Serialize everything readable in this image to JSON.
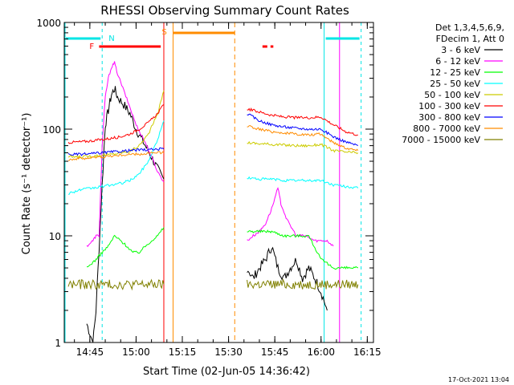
{
  "chart_data": {
    "type": "line",
    "title": "RHESSI Observing Summary Count Rates",
    "xlabel": "Start Time (02-Jun-05 14:36:42)",
    "ylabel": "Count Rate (s⁻¹ detector⁻¹)",
    "y_scale": "log",
    "ylim": [
      1,
      1000
    ],
    "xlim": [
      "14:36:42",
      "16:17:00"
    ],
    "x_ticks": [
      "14:45",
      "15:00",
      "15:15",
      "15:30",
      "15:45",
      "16:00",
      "16:15"
    ],
    "y_ticks": [
      "1",
      "10",
      "100",
      "1000"
    ],
    "grid": false,
    "legend_position": "right",
    "legend_header": [
      "Det 1,3,4,5,6,9,",
      "FDecim 1, Att 0"
    ],
    "footer": "17-Oct-2021 13:04",
    "annotations": [
      {
        "text": "N",
        "time": "14:49",
        "color": "#00e5e5"
      },
      {
        "text": "F",
        "time": "14:48",
        "color": "#ff0000"
      },
      {
        "text": "S",
        "time": "15:12",
        "color": "#ff8c00"
      }
    ],
    "data_gaps": [
      [
        "15:09",
        "15:33"
      ],
      [
        "16:06",
        "16:13"
      ]
    ],
    "night_intervals": [
      [
        "14:36:42",
        "14:49"
      ],
      [
        "16:01",
        "16:13"
      ]
    ],
    "saa_interval": [
      "15:12",
      "15:32"
    ],
    "flare_intervals": [
      [
        "14:48",
        "15:08"
      ],
      [
        "15:41",
        "15:44"
      ]
    ],
    "series": [
      {
        "name": "3 - 6 keV",
        "color": "#000000",
        "segments": [
          {
            "x": [
              "14:44",
              "14:46",
              "14:47",
              "14:49",
              "14:50",
              "14:51",
              "14:52",
              "14:53",
              "14:54",
              "14:56",
              "14:58",
              "15:00",
              "15:03",
              "15:05",
              "15:07",
              "15:09"
            ],
            "y": [
              1.5,
              1.0,
              2.0,
              30,
              110,
              150,
              210,
              240,
              200,
              170,
              140,
              100,
              70,
              55,
              42,
              34
            ]
          },
          {
            "x": [
              "15:36",
              "15:38",
              "15:40",
              "15:42",
              "15:44",
              "15:46",
              "15:48",
              "15:50",
              "15:52",
              "15:54",
              "15:56",
              "15:58",
              "16:00",
              "16:02"
            ],
            "y": [
              5,
              4,
              5,
              6,
              8,
              5,
              4,
              5,
              6,
              4,
              5,
              4,
              3,
              2
            ]
          }
        ]
      },
      {
        "name": "6 - 12 keV",
        "color": "#ff00ff",
        "segments": [
          {
            "x": [
              "14:44",
              "14:46",
              "14:47",
              "14:48",
              "14:49",
              "14:50",
              "14:51",
              "14:52",
              "14:53",
              "14:54",
              "14:56",
              "14:58",
              "15:00",
              "15:03",
              "15:05",
              "15:07",
              "15:09"
            ],
            "y": [
              8,
              9,
              10,
              10,
              70,
              200,
              300,
              380,
              420,
              330,
              230,
              160,
              110,
              75,
              55,
              40,
              32
            ]
          },
          {
            "x": [
              "15:36",
              "15:38",
              "15:40",
              "15:42",
              "15:44",
              "15:46",
              "15:47",
              "15:49",
              "15:52",
              "15:55",
              "15:58",
              "16:00",
              "16:02",
              "16:04"
            ],
            "y": [
              9,
              10,
              11,
              13,
              18,
              28,
              20,
              14,
              10,
              10,
              9,
              9,
              9,
              8
            ]
          }
        ]
      },
      {
        "name": "12 - 25 keV",
        "color": "#00ff00",
        "segments": [
          {
            "x": [
              "14:44",
              "14:47",
              "14:49",
              "14:51",
              "14:53",
              "14:55",
              "14:57",
              "14:59",
              "15:01",
              "15:03",
              "15:05",
              "15:07",
              "15:09"
            ],
            "y": [
              5,
              6,
              7,
              8,
              10,
              9,
              8,
              7,
              7,
              8,
              9,
              10,
              12
            ]
          },
          {
            "x": [
              "15:36",
              "15:40",
              "15:44",
              "15:48",
              "15:52",
              "15:56",
              "16:00",
              "16:04",
              "16:08",
              "16:12"
            ],
            "y": [
              11,
              11,
              11,
              10,
              10,
              10,
              6,
              5,
              5,
              5
            ]
          }
        ]
      },
      {
        "name": "25 - 50 keV",
        "color": "#00ffff",
        "segments": [
          {
            "x": [
              "14:38",
              "14:42",
              "14:46",
              "14:49",
              "14:52",
              "14:55",
              "14:58",
              "15:01",
              "15:04",
              "15:07",
              "15:09"
            ],
            "y": [
              25,
              27,
              28,
              29,
              30,
              31,
              33,
              38,
              50,
              80,
              120
            ]
          },
          {
            "x": [
              "15:36",
              "15:40",
              "15:44",
              "15:48",
              "15:52",
              "15:56",
              "16:00",
              "16:04",
              "16:08",
              "16:12"
            ],
            "y": [
              35,
              34,
              34,
              33,
              33,
              33,
              33,
              30,
              29,
              28
            ]
          }
        ]
      },
      {
        "name": "50 - 100 keV",
        "color": "#cccc00",
        "segments": [
          {
            "x": [
              "14:38",
              "14:42",
              "14:46",
              "14:49",
              "14:52",
              "14:55",
              "14:58",
              "15:01",
              "15:04",
              "15:07",
              "15:09"
            ],
            "y": [
              55,
              55,
              56,
              57,
              58,
              60,
              62,
              70,
              90,
              140,
              230
            ]
          },
          {
            "x": [
              "15:36",
              "15:40",
              "15:44",
              "15:48",
              "15:52",
              "15:56",
              "16:00",
              "16:04",
              "16:08",
              "16:12"
            ],
            "y": [
              75,
              73,
              72,
              71,
              70,
              70,
              72,
              63,
              61,
              60
            ]
          }
        ]
      },
      {
        "name": "100 - 300 keV",
        "color": "#ff0000",
        "segments": [
          {
            "x": [
              "14:38",
              "14:42",
              "14:46",
              "14:49",
              "14:52",
              "14:55",
              "14:58",
              "15:01",
              "15:04",
              "15:07",
              "15:09"
            ],
            "y": [
              75,
              76,
              78,
              80,
              82,
              85,
              90,
              100,
              115,
              140,
              170
            ]
          },
          {
            "x": [
              "15:36",
              "15:40",
              "15:44",
              "15:48",
              "15:52",
              "15:56",
              "16:00",
              "16:04",
              "16:08",
              "16:12"
            ],
            "y": [
              155,
              145,
              135,
              130,
              128,
              128,
              130,
              110,
              95,
              88
            ]
          }
        ]
      },
      {
        "name": "300 - 800 keV",
        "color": "#0000ff",
        "segments": [
          {
            "x": [
              "14:38",
              "14:42",
              "14:46",
              "14:49",
              "14:52",
              "14:55",
              "14:58",
              "15:01",
              "15:04",
              "15:07",
              "15:09"
            ],
            "y": [
              58,
              58,
              59,
              60,
              61,
              62,
              63,
              64,
              64,
              65,
              65
            ]
          },
          {
            "x": [
              "15:36",
              "15:40",
              "15:44",
              "15:48",
              "15:52",
              "15:56",
              "16:00",
              "16:04",
              "16:08",
              "16:12"
            ],
            "y": [
              140,
              120,
              110,
              105,
              102,
              100,
              100,
              85,
              76,
              70
            ]
          }
        ]
      },
      {
        "name": "800 - 7000 keV",
        "color": "#ff8c00",
        "segments": [
          {
            "x": [
              "14:38",
              "14:42",
              "14:46",
              "14:49",
              "14:52",
              "14:55",
              "14:58",
              "15:01",
              "15:04",
              "15:07",
              "15:09"
            ],
            "y": [
              52,
              53,
              54,
              55,
              56,
              57,
              58,
              58,
              59,
              60,
              60
            ]
          },
          {
            "x": [
              "15:36",
              "15:40",
              "15:44",
              "15:48",
              "15:52",
              "15:56",
              "16:00",
              "16:04",
              "16:08",
              "16:12"
            ],
            "y": [
              108,
              100,
              95,
              92,
              90,
              88,
              90,
              75,
              67,
              63
            ]
          }
        ]
      },
      {
        "name": "7000 - 15000 keV",
        "color": "#808000",
        "segments": [
          {
            "x": [
              "14:38",
              "14:42",
              "14:46",
              "14:49",
              "14:52",
              "14:55",
              "14:58",
              "15:01",
              "15:04",
              "15:07",
              "15:09"
            ],
            "y": [
              3.5,
              3.5,
              3.5,
              3.5,
              3.5,
              3.5,
              3.5,
              3.5,
              3.5,
              3.5,
              3.5
            ]
          },
          {
            "x": [
              "15:36",
              "15:40",
              "15:44",
              "15:48",
              "15:52",
              "15:56",
              "16:00",
              "16:04",
              "16:08",
              "16:12"
            ],
            "y": [
              3.5,
              3.5,
              3.5,
              3.5,
              3.5,
              3.5,
              3.5,
              3.5,
              3.5,
              3.5
            ]
          }
        ]
      }
    ]
  }
}
